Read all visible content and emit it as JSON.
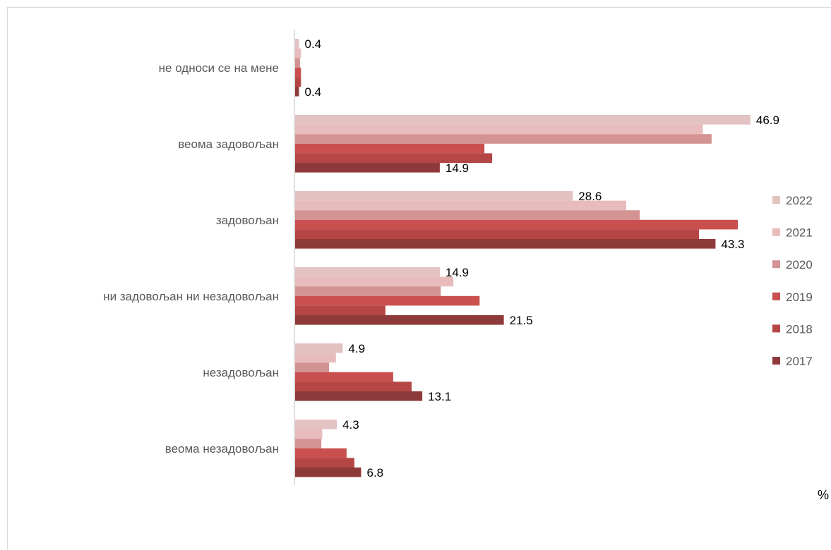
{
  "chart_data": {
    "type": "bar",
    "orientation": "horizontal",
    "categories": [
      "не односи се на мене",
      "веома задовољан",
      "задовољан",
      "ни задовољан ни незадовољан",
      "незадовољан",
      "веома незадовољан"
    ],
    "series": [
      {
        "name": "2022",
        "color": "#e3c2c2",
        "values": [
          0.4,
          46.9,
          28.6,
          14.9,
          4.9,
          4.3
        ]
      },
      {
        "name": "2021",
        "color": "#e8bcbc",
        "values": [
          0.6,
          42.0,
          34.1,
          16.3,
          4.2,
          2.8
        ]
      },
      {
        "name": "2020",
        "color": "#d49393",
        "values": [
          0.5,
          42.9,
          35.5,
          15.0,
          3.5,
          2.7
        ]
      },
      {
        "name": "2019",
        "color": "#c9504f",
        "values": [
          0.6,
          19.5,
          45.6,
          19.0,
          10.1,
          5.3
        ]
      },
      {
        "name": "2018",
        "color": "#b54646",
        "values": [
          0.6,
          20.3,
          41.6,
          9.3,
          12.0,
          6.1
        ]
      },
      {
        "name": "2017",
        "color": "#8f3a3a",
        "values": [
          0.4,
          14.9,
          43.3,
          21.5,
          13.1,
          6.8
        ]
      }
    ],
    "data_labels": [
      {
        "category": 0,
        "series": 0,
        "text": "0.4"
      },
      {
        "category": 0,
        "series": 5,
        "text": "0.4"
      },
      {
        "category": 1,
        "series": 0,
        "text": "46.9"
      },
      {
        "category": 1,
        "series": 5,
        "text": "14.9"
      },
      {
        "category": 2,
        "series": 0,
        "text": "28.6"
      },
      {
        "category": 2,
        "series": 5,
        "text": "43.3"
      },
      {
        "category": 3,
        "series": 0,
        "text": "14.9"
      },
      {
        "category": 3,
        "series": 5,
        "text": "21.5"
      },
      {
        "category": 4,
        "series": 0,
        "text": "4.9"
      },
      {
        "category": 4,
        "series": 5,
        "text": "13.1"
      },
      {
        "category": 5,
        "series": 0,
        "text": "4.3"
      },
      {
        "category": 5,
        "series": 5,
        "text": "6.8"
      }
    ],
    "legend": [
      "2022",
      "2021",
      "2020",
      "2019",
      "2018",
      "2017"
    ],
    "legend_position": "right",
    "unit_label": "%",
    "xlim": [
      0,
      55
    ],
    "grid": false
  }
}
